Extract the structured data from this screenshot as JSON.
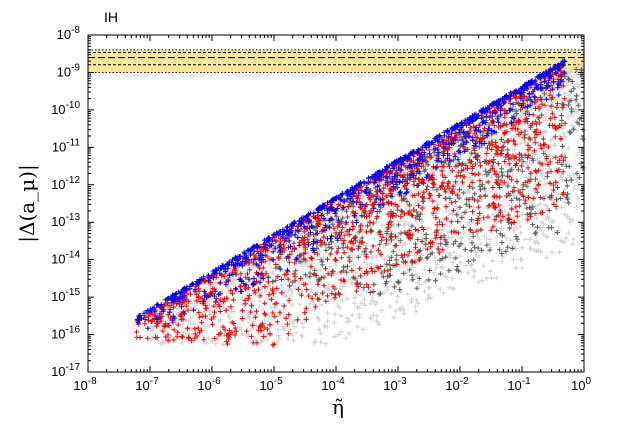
{
  "chart_data": {
    "type": "scatter",
    "title": "",
    "panel_label": "IH",
    "xlabel": "η̃",
    "ylabel": "|Δ(a_μ)|",
    "x_scale": "log",
    "y_scale": "log",
    "xlim": [
      1e-08,
      1
    ],
    "ylim": [
      1e-17,
      1e-08
    ],
    "x_ticks": [
      {
        "base": "10",
        "exp": "-8"
      },
      {
        "base": "10",
        "exp": "-7"
      },
      {
        "base": "10",
        "exp": "-6"
      },
      {
        "base": "10",
        "exp": "-5"
      },
      {
        "base": "10",
        "exp": "-4"
      },
      {
        "base": "10",
        "exp": "-3"
      },
      {
        "base": "10",
        "exp": "-2"
      },
      {
        "base": "10",
        "exp": "-1"
      },
      {
        "base": "10",
        "exp": "0"
      }
    ],
    "y_ticks": [
      {
        "base": "10",
        "exp": "-17"
      },
      {
        "base": "10",
        "exp": "-16"
      },
      {
        "base": "10",
        "exp": "-15"
      },
      {
        "base": "10",
        "exp": "-14"
      },
      {
        "base": "10",
        "exp": "-13"
      },
      {
        "base": "10",
        "exp": "-12"
      },
      {
        "base": "10",
        "exp": "-11"
      },
      {
        "base": "10",
        "exp": "-10"
      },
      {
        "base": "10",
        "exp": "-9"
      },
      {
        "base": "10",
        "exp": "-8"
      }
    ],
    "grid": false,
    "legend": "none",
    "band": {
      "outer": [
        1e-09,
        4e-09
      ],
      "inner": [
        1.6e-09,
        3.4e-09
      ],
      "central": 2.5e-09,
      "color": "#fde79a"
    },
    "marker": "+",
    "series": [
      {
        "color": "#d3d3d3",
        "envelope_upper": [
          [
            1e-07,
            3e-16
          ],
          [
            1,
            2e-09
          ]
        ],
        "envelope_lower_points": [
          [
            1e-07,
            6e-17
          ],
          [
            0.0001,
            6e-17
          ],
          [
            1,
            3e-14
          ]
        ],
        "count": 1600
      },
      {
        "color": "#5e5e5e",
        "envelope_upper": [
          [
            1e-05,
            3e-14
          ],
          [
            1,
            2e-09
          ]
        ],
        "envelope_lower_points": [
          [
            1e-05,
            3e-15
          ],
          [
            0.001,
            1e-15
          ],
          [
            1,
            1e-13
          ]
        ],
        "count": 600
      },
      {
        "color": "#ff0000",
        "envelope_upper": [
          [
            6e-08,
            2.5e-16
          ],
          [
            0.5,
            2e-09
          ]
        ],
        "envelope_lower_points": [
          [
            6e-08,
            8e-17
          ],
          [
            1e-05,
            5e-17
          ],
          [
            0.001,
            6e-15
          ],
          [
            0.5,
            3e-13
          ]
        ],
        "count": 1300
      },
      {
        "color": "#0000ff",
        "envelope_upper": [
          [
            6e-08,
            3e-16
          ],
          [
            0.5,
            2.2e-09
          ]
        ],
        "envelope_lower_points": [
          [
            6e-08,
            1e-16
          ],
          [
            1e-05,
            3e-15
          ],
          [
            0.5,
            3e-10
          ]
        ],
        "count": 900
      }
    ]
  }
}
